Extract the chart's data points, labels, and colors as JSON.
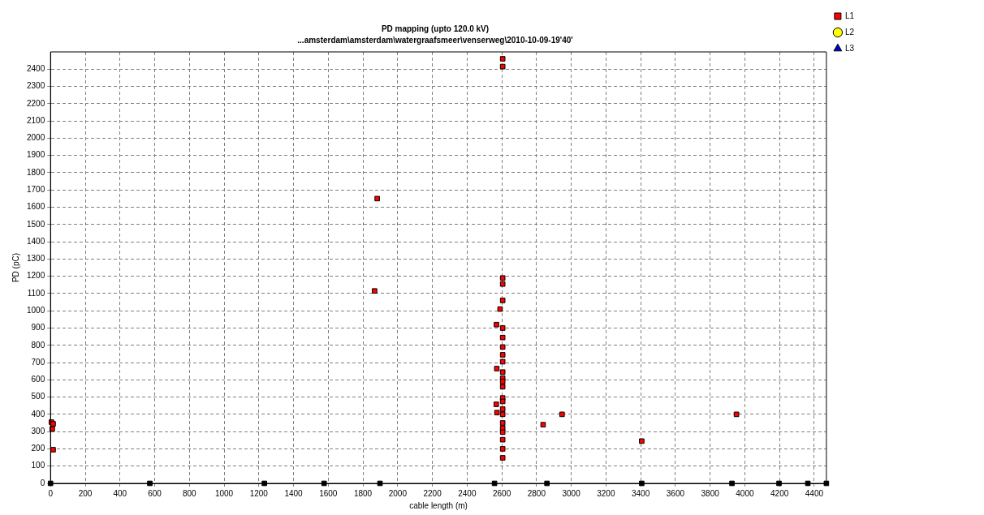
{
  "chart_data": {
    "type": "scatter",
    "title": "PD mapping (upto 120.0 kV)",
    "subtitle": "...amsterdam\\amsterdam\\watergraafsmeer\\venserweg\\2010-10-09-19'40'",
    "xlabel": "cable length (m)",
    "ylabel": "PD (pC)",
    "xlim": [
      0,
      4470
    ],
    "xticks": [
      0,
      200,
      400,
      600,
      800,
      1000,
      1200,
      1400,
      1600,
      1800,
      2000,
      2200,
      2400,
      2600,
      2800,
      3000,
      3200,
      3400,
      3600,
      3800,
      4000,
      4200,
      4400
    ],
    "ylim": [
      0,
      2500
    ],
    "yticks": [
      0,
      100,
      200,
      300,
      400,
      500,
      600,
      700,
      800,
      900,
      1000,
      1100,
      1200,
      1300,
      1400,
      1500,
      1600,
      1700,
      1800,
      1900,
      2000,
      2100,
      2200,
      2300,
      2400
    ],
    "grid": true,
    "legend": "right",
    "series": [
      {
        "name": "L1",
        "color": "#ff0000",
        "marker": "square",
        "x": [
          5,
          15,
          10,
          15,
          1882,
          1867,
          2605,
          2605,
          2605,
          2605,
          2605,
          2590,
          2569,
          2605,
          2605,
          2605,
          2605,
          2605,
          2571,
          2605,
          2605,
          2605,
          2605,
          2605,
          2605,
          2568,
          2605,
          2572,
          2605,
          2605,
          2605,
          2605,
          2605,
          2605,
          2605,
          2838,
          2947,
          3406,
          3952
        ],
        "values": [
          355,
          345,
          315,
          195,
          1650,
          1115,
          2460,
          2415,
          1190,
          1155,
          1060,
          1010,
          920,
          900,
          845,
          790,
          745,
          705,
          665,
          645,
          610,
          590,
          560,
          495,
          475,
          458,
          430,
          410,
          400,
          350,
          320,
          297,
          253,
          200,
          148,
          340,
          400,
          245,
          400
        ]
      },
      {
        "name": "L2",
        "color": "#ffff00",
        "marker": "circle"
      },
      {
        "name": "L3",
        "color": "#0000cc",
        "marker": "triangle"
      },
      {
        "color": "#000000",
        "marker": "square",
        "x": [
          0,
          572,
          1232,
          1576,
          1898,
          2558,
          2860,
          3406,
          3926,
          4197,
          4363,
          4470
        ],
        "values": [
          0,
          0,
          0,
          0,
          0,
          0,
          0,
          0,
          0,
          0,
          0,
          0
        ]
      }
    ]
  }
}
